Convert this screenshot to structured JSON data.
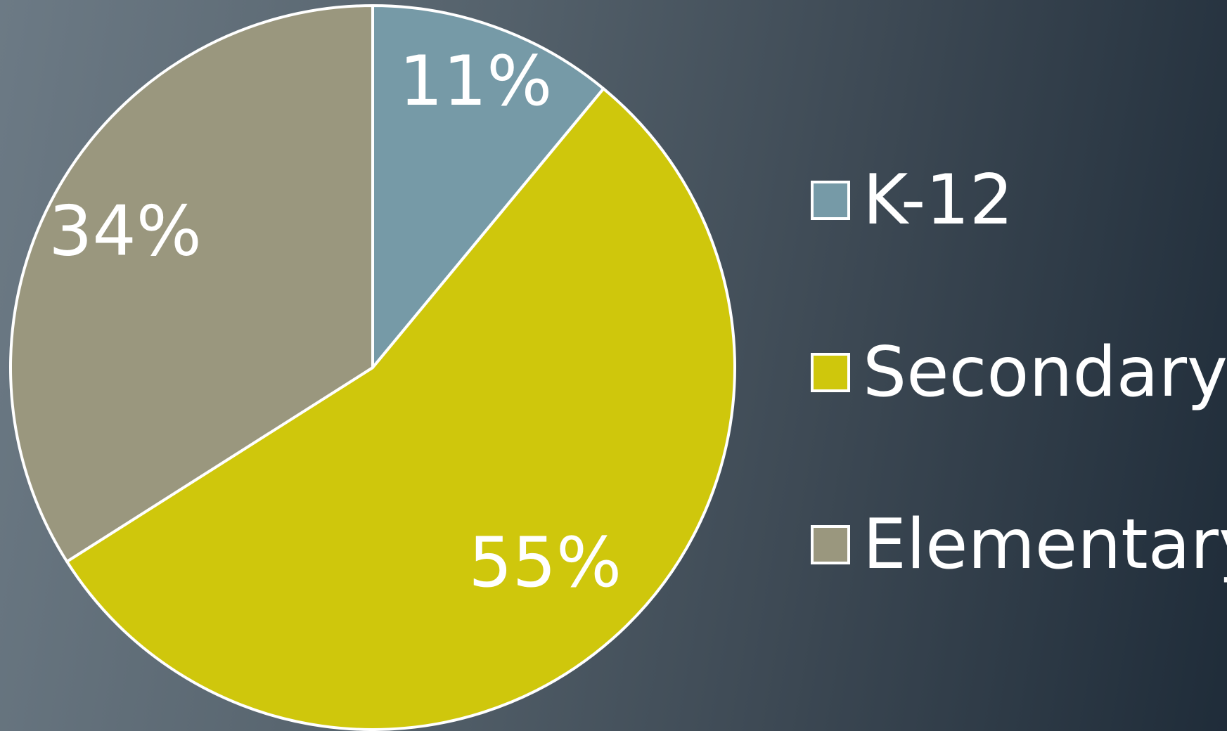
{
  "chart_data": {
    "type": "pie",
    "title": "",
    "slices": [
      {
        "label": "K-12",
        "value": 11,
        "display": "11%",
        "color": "#769aa7"
      },
      {
        "label": "Secondary",
        "value": 55,
        "display": "55%",
        "color": "#cfc70c"
      },
      {
        "label": "Elementary",
        "value": 34,
        "display": "34%",
        "color": "#9a977e"
      }
    ],
    "legend": {
      "placement": "right",
      "items": [
        "K-12",
        "Secondary",
        "Elementary"
      ]
    },
    "start_angle": "12 o'clock",
    "direction": "clockwise",
    "slice_border_color": "#ffffff"
  }
}
